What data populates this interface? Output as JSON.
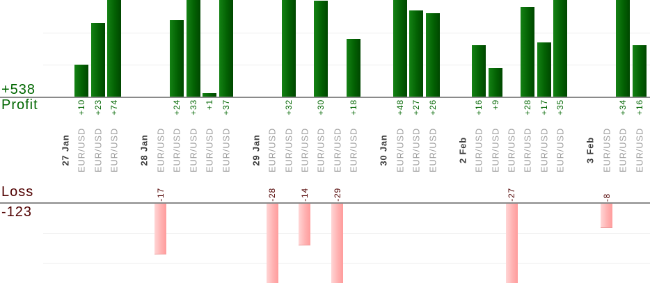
{
  "chart_data": {
    "type": "bar",
    "description": "Daily trade results split into an upper profit bar chart and a lower loss bar chart",
    "profit": {
      "total_label": "+538",
      "axis_label": "Profit",
      "text_color": "#006600",
      "bar_gradient": [
        "#148214",
        "#036103",
        "#004700"
      ]
    },
    "loss": {
      "total_label": "-123",
      "axis_label": "Loss",
      "text_color": "#500000",
      "bar_gradient": [
        "#ffd6d6",
        "#ffb2b2",
        "#ff9c9c"
      ]
    },
    "axis_line_color": "#8a8a8a",
    "grid": {
      "step": 10,
      "color": "#ededed",
      "on": true
    },
    "date_label_color": "#3c3c3c",
    "symbol_label_color": "#9e9e9e",
    "groups": [
      {
        "date": "27 Jan",
        "trades": [
          {
            "symbol": "EUR/USD",
            "value": 10
          },
          {
            "symbol": "EUR/USD",
            "value": 23
          },
          {
            "symbol": "EUR/USD",
            "value": 74
          }
        ]
      },
      {
        "date": "28 Jan",
        "trades": [
          {
            "symbol": "EUR/USD",
            "value": -17
          },
          {
            "symbol": "EUR/USD",
            "value": 24
          },
          {
            "symbol": "EUR/USD",
            "value": 33
          },
          {
            "symbol": "EUR/USD",
            "value": 1
          },
          {
            "symbol": "EUR/USD",
            "value": 37
          }
        ]
      },
      {
        "date": "29 Jan",
        "trades": [
          {
            "symbol": "EUR/USD",
            "value": -28
          },
          {
            "symbol": "EUR/USD",
            "value": 32
          },
          {
            "symbol": "EUR/USD",
            "value": -14
          },
          {
            "symbol": "EUR/USD",
            "value": 30
          },
          {
            "symbol": "EUR/USD",
            "value": -29
          },
          {
            "symbol": "EUR/USD",
            "value": 18
          }
        ]
      },
      {
        "date": "30 Jan",
        "trades": [
          {
            "symbol": "EUR/USD",
            "value": 48
          },
          {
            "symbol": "EUR/USD",
            "value": 27
          },
          {
            "symbol": "EUR/USD",
            "value": 26
          }
        ]
      },
      {
        "date": "2 Feb",
        "trades": [
          {
            "symbol": "EUR/USD",
            "value": 16
          },
          {
            "symbol": "EUR/USD",
            "value": 9
          },
          {
            "symbol": "EUR/USD",
            "value": -27
          },
          {
            "symbol": "EUR/USD",
            "value": 28
          },
          {
            "symbol": "EUR/USD",
            "value": 17
          },
          {
            "symbol": "EUR/USD",
            "value": 35
          }
        ]
      },
      {
        "date": "3 Feb",
        "trades": [
          {
            "symbol": "EUR/USD",
            "value": -8
          },
          {
            "symbol": "EUR/USD",
            "value": 34
          },
          {
            "symbol": "EUR/USD",
            "value": 16
          }
        ]
      }
    ]
  }
}
